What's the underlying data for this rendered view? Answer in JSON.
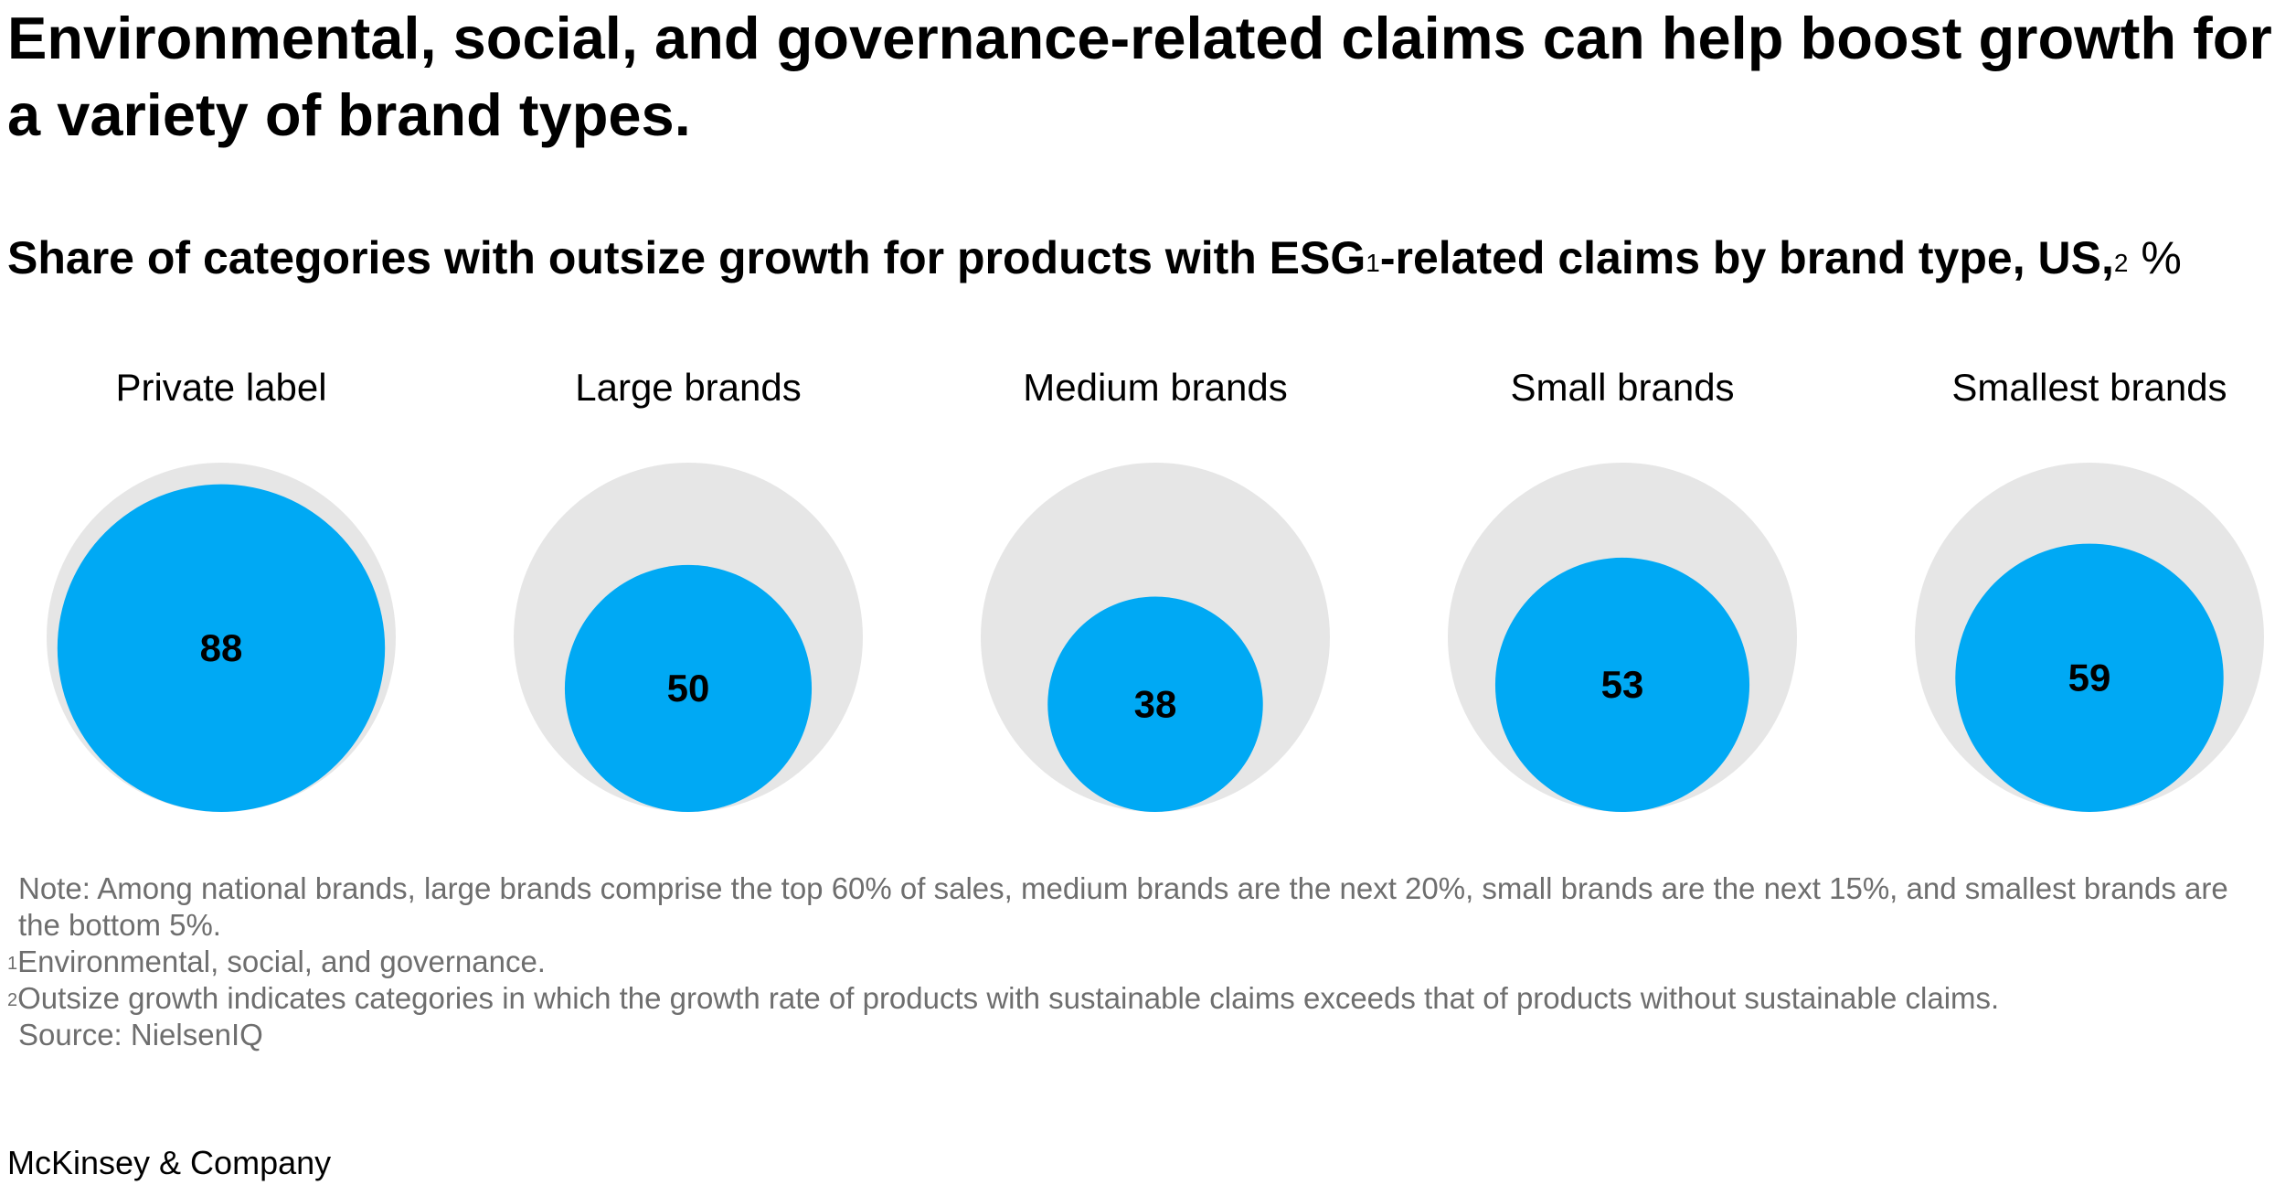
{
  "headline": "Environmental, social, and governance-related claims can help boost growth for a variety of brand types.",
  "subtitle": {
    "text_a": "Share of categories with outsize growth for products with ESG",
    "sup_1": "1",
    "text_b": "-related claims by brand type, US,",
    "sup_2": "2",
    "unit": "%"
  },
  "colors": {
    "accent": "#00A9F4",
    "background_circle": "#E6E6E6",
    "text": "#000000",
    "note_text": "#6E6E6E"
  },
  "chart_data": {
    "type": "bubble",
    "title": "Share of categories with outsize growth for products with ESG-related claims by brand type, US, %",
    "unit": "%",
    "max_value": 100,
    "categories": [
      "Private label",
      "Large brands",
      "Medium brands",
      "Small brands",
      "Smallest brands"
    ],
    "values": [
      88,
      50,
      38,
      53,
      59
    ]
  },
  "notes": {
    "note": "Note: Among national brands, large brands comprise the top 60% of sales, medium brands are the next 20%, small brands are the next 15%, and smallest brands are the bottom 5%.",
    "footnote_1_mark": "1",
    "footnote_1": "Environmental, social, and governance.",
    "footnote_2_mark": "2",
    "footnote_2": "Outsize growth indicates categories in which the growth rate of products with sustainable claims exceeds that of products without sustainable claims.",
    "source": "Source: NielsenIQ"
  },
  "footer": "McKinsey & Company"
}
